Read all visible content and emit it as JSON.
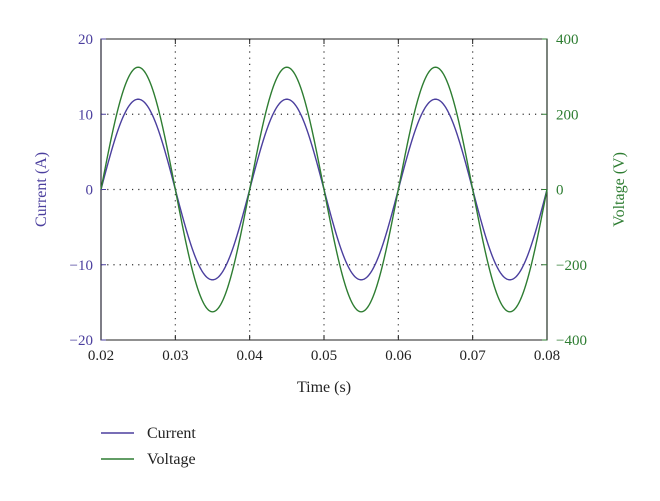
{
  "chart_data": {
    "type": "line",
    "xlabel": "Time (s)",
    "ylabel_left": "Current (A)",
    "ylabel_right": "Voltage (V)",
    "xlim": [
      0.02,
      0.08
    ],
    "ylim_left": [
      -20,
      20
    ],
    "ylim_right": [
      -400,
      400
    ],
    "x_ticks": [
      "0.02",
      "0.03",
      "0.04",
      "0.05",
      "0.06",
      "0.07",
      "0.08"
    ],
    "y_left_ticks": [
      "20",
      "10",
      "0",
      "−10",
      "−20"
    ],
    "y_right_ticks": [
      "400",
      "200",
      "0",
      "−200",
      "−400"
    ],
    "grid": true,
    "legend_position": "bottom-left",
    "series": [
      {
        "name": "Current",
        "axis": "left",
        "color": "#4b3f9e",
        "amplitude": 12,
        "frequency_hz": 50,
        "phase_deg": 0
      },
      {
        "name": "Voltage",
        "axis": "right",
        "color": "#2e7d32",
        "amplitude": 325,
        "frequency_hz": 50,
        "phase_deg": 0
      }
    ],
    "colors": {
      "left_axis": "#4b3f9e",
      "right_axis": "#2e7d32",
      "grid": "#333333",
      "frame": "#222222"
    }
  }
}
